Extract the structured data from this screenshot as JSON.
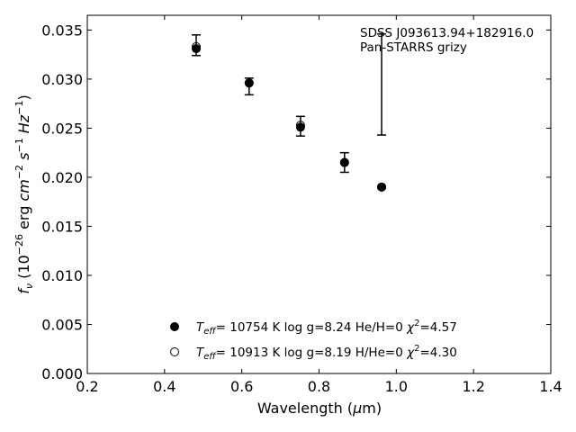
{
  "chart_data": {
    "type": "scatter",
    "xlabel": "Wavelength (μm)",
    "ylabel": "f_ν (10^-26 erg cm^-2 s^-1 Hz^-1)",
    "xlim": [
      0.2,
      1.4
    ],
    "ylim": [
      0.0,
      0.0365
    ],
    "x_ticks": [
      0.2,
      0.4,
      0.6,
      0.8,
      1.0,
      1.2,
      1.4
    ],
    "x_tick_labels": [
      "0.2",
      "0.4",
      "0.6",
      "0.8",
      "1.0",
      "1.2",
      "1.4"
    ],
    "y_ticks": [
      0.0,
      0.005,
      0.01,
      0.015,
      0.02,
      0.025,
      0.03,
      0.035
    ],
    "y_tick_labels": [
      "0.000",
      "0.005",
      "0.010",
      "0.015",
      "0.020",
      "0.025",
      "0.030",
      "0.035"
    ],
    "grid": false,
    "annotations": [
      "SDSS J093613.94+182916.0",
      "Pan-STARRS grizy"
    ],
    "observed": {
      "x": [
        0.482,
        0.619,
        0.752,
        0.866,
        0.962
      ],
      "y_low": [
        0.0324,
        0.0284,
        0.0242,
        0.0205,
        0.0243
      ],
      "y_high": [
        0.0345,
        0.0301,
        0.0262,
        0.0225,
        0.0346
      ]
    },
    "series": [
      {
        "marker": "filled-circle",
        "legend": "Teff= 10754 K  log g=8.24  He/H=0  χ2=4.57",
        "x": [
          0.482,
          0.619,
          0.752,
          0.866,
          0.962
        ],
        "y": [
          0.0331,
          0.0296,
          0.0251,
          0.0215,
          0.019
        ]
      },
      {
        "marker": "open-circle",
        "legend": "Teff= 10913 K  log g=8.19  H/He=0  χ2=4.30",
        "x": [
          0.482,
          0.619,
          0.752,
          0.866,
          0.962
        ],
        "y": [
          0.0333,
          0.0296,
          0.0253,
          0.0215,
          0.019
        ]
      }
    ],
    "legend": {
      "position": "lower-center",
      "entries": [
        {
          "teff": "= 10754 K",
          "logg": "log g=8.24",
          "comp": "He/H=0",
          "chi": "=4.57"
        },
        {
          "teff": "= 10913 K",
          "logg": "log g=8.19",
          "comp": "H/He=0",
          "chi": "=4.30"
        }
      ]
    },
    "colors": {
      "marker": "#000000",
      "axis": "#000000"
    }
  }
}
